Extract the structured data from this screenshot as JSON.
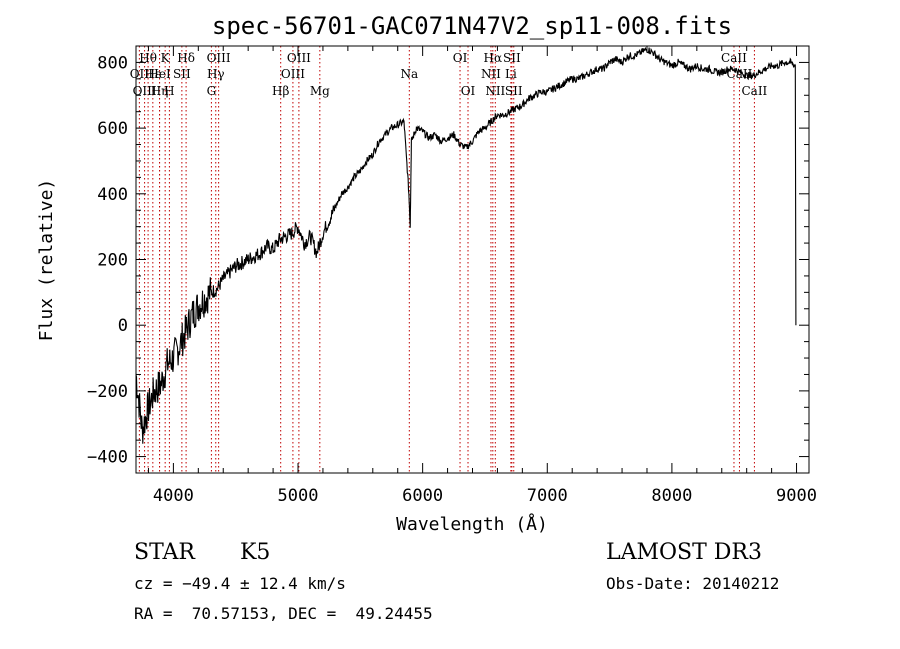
{
  "chart_data": {
    "type": "line",
    "title": "spec-56701-GAC071N47V2_sp11-008.fits",
    "xlabel": "Wavelength (Å)",
    "ylabel": "Flux (relative)",
    "xlim": [
      3700,
      9100
    ],
    "ylim": [
      -450,
      850
    ],
    "xticks": [
      4000,
      5000,
      6000,
      7000,
      8000,
      9000
    ],
    "xtick_labels": [
      "4000",
      "5000",
      "6000",
      "7000",
      "8000",
      "9000"
    ],
    "yticks": [
      -400,
      -200,
      0,
      200,
      400,
      600,
      800
    ],
    "ytick_labels": [
      "−400",
      "−200",
      "0",
      "200",
      "400",
      "600",
      "800"
    ],
    "series": [
      {
        "name": "spectrum",
        "x": [
          3700,
          3750,
          3800,
          3850,
          3900,
          3950,
          4000,
          4050,
          4100,
          4150,
          4200,
          4250,
          4300,
          4350,
          4400,
          4450,
          4500,
          4550,
          4600,
          4650,
          4700,
          4750,
          4800,
          4850,
          4900,
          4950,
          5000,
          5050,
          5100,
          5150,
          5200,
          5250,
          5300,
          5350,
          5400,
          5450,
          5500,
          5550,
          5600,
          5650,
          5700,
          5750,
          5800,
          5850,
          5890,
          5900,
          5910,
          5950,
          6000,
          6050,
          6100,
          6150,
          6200,
          6250,
          6300,
          6350,
          6400,
          6450,
          6500,
          6550,
          6600,
          6650,
          6700,
          6750,
          6800,
          6850,
          6900,
          6950,
          7000,
          7050,
          7100,
          7150,
          7200,
          7250,
          7300,
          7350,
          7400,
          7450,
          7500,
          7550,
          7600,
          7650,
          7700,
          7750,
          7800,
          7850,
          7900,
          7950,
          8000,
          8050,
          8100,
          8150,
          8200,
          8250,
          8300,
          8350,
          8400,
          8450,
          8500,
          8550,
          8600,
          8650,
          8700,
          8750,
          8800,
          8850,
          8900,
          8950,
          8990
        ],
        "y": [
          -150,
          -320,
          -250,
          -200,
          -180,
          -120,
          -100,
          -60,
          -20,
          30,
          60,
          80,
          100,
          110,
          140,
          160,
          180,
          190,
          200,
          210,
          220,
          240,
          230,
          260,
          270,
          280,
          300,
          250,
          270,
          220,
          280,
          320,
          360,
          400,
          420,
          450,
          470,
          500,
          520,
          560,
          580,
          600,
          610,
          620,
          400,
          300,
          560,
          600,
          590,
          570,
          580,
          560,
          570,
          580,
          550,
          540,
          560,
          590,
          600,
          620,
          640,
          640,
          650,
          660,
          670,
          690,
          700,
          710,
          710,
          720,
          730,
          740,
          750,
          750,
          760,
          770,
          780,
          780,
          800,
          810,
          800,
          820,
          820,
          830,
          840,
          830,
          810,
          800,
          790,
          800,
          790,
          780,
          790,
          780,
          780,
          770,
          770,
          780,
          780,
          770,
          760,
          760,
          770,
          780,
          790,
          790,
          800,
          800,
          790
        ]
      }
    ],
    "line_markers": [
      {
        "label": "Hθ",
        "x": 3797,
        "row": 1
      },
      {
        "label": "OII",
        "x": 3727,
        "row": 2
      },
      {
        "label": "OIII",
        "x": 3769,
        "row": 3
      },
      {
        "label": "Hε",
        "x": 3835,
        "row": 2
      },
      {
        "label": "K",
        "x": 3934,
        "row": 1
      },
      {
        "label": "HeI",
        "x": 3889,
        "row": 2
      },
      {
        "label": "Hη",
        "x": 3889,
        "row": 3
      },
      {
        "label": "Hδ",
        "x": 4102,
        "row": 1
      },
      {
        "label": "SII",
        "x": 4068,
        "row": 2
      },
      {
        "label": "H",
        "x": 3968,
        "row": 3
      },
      {
        "label": "OIII",
        "x": 4363,
        "row": 1
      },
      {
        "label": "Hγ",
        "x": 4340,
        "row": 2
      },
      {
        "label": "G",
        "x": 4305,
        "row": 3
      },
      {
        "label": "Hβ",
        "x": 4861,
        "row": 3
      },
      {
        "label": "OIII",
        "x": 5007,
        "row": 1
      },
      {
        "label": "OIII",
        "x": 4959,
        "row": 2
      },
      {
        "label": "Mg",
        "x": 5175,
        "row": 3
      },
      {
        "label": "Na",
        "x": 5893,
        "row": 2
      },
      {
        "label": "OI",
        "x": 6300,
        "row": 1
      },
      {
        "label": "OI",
        "x": 6364,
        "row": 3
      },
      {
        "label": "Hα",
        "x": 6563,
        "row": 1
      },
      {
        "label": "NII",
        "x": 6548,
        "row": 2
      },
      {
        "label": "NII",
        "x": 6583,
        "row": 3
      },
      {
        "label": "SII",
        "x": 6716,
        "row": 1
      },
      {
        "label": "Li",
        "x": 6708,
        "row": 2
      },
      {
        "label": "SII",
        "x": 6731,
        "row": 3
      },
      {
        "label": "CaII",
        "x": 8498,
        "row": 1
      },
      {
        "label": "CaII",
        "x": 8542,
        "row": 2
      },
      {
        "label": "CaII",
        "x": 8662,
        "row": 3
      }
    ]
  },
  "info": {
    "object_class": "STAR",
    "subclass": "K5",
    "survey": "LAMOST DR3",
    "cz": "cz = −49.4 ± 12.4 km/s",
    "obs_date": "Obs-Date: 20140212",
    "coords": "RA =  70.57153, DEC =  49.24455"
  }
}
